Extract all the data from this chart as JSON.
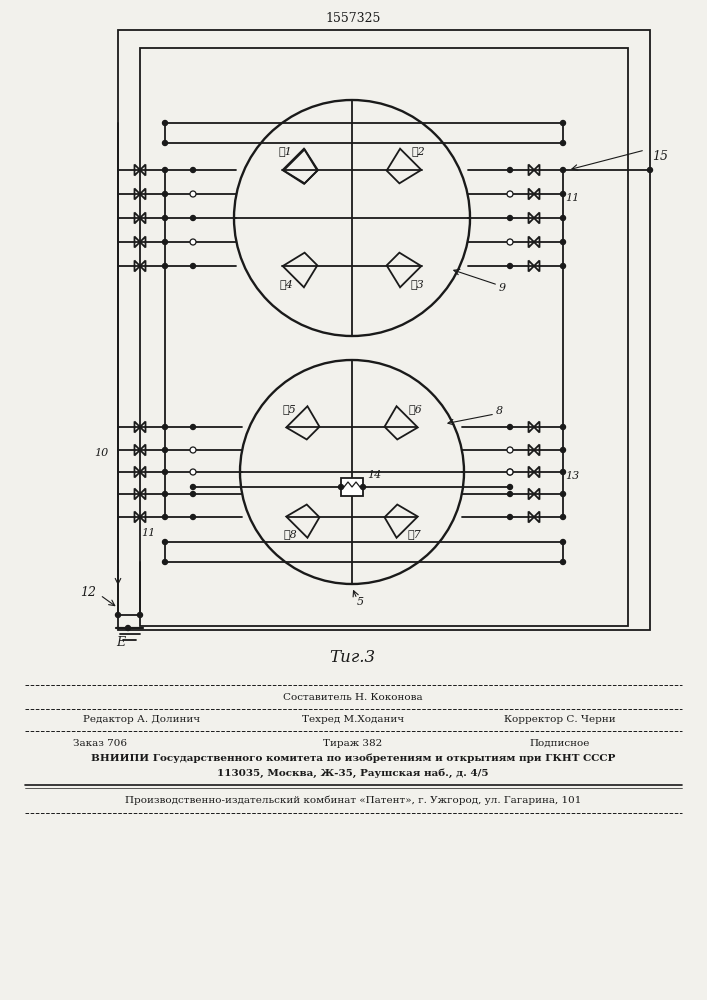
{
  "patent_number": "1557325",
  "fig_label": "Τиг.3",
  "bg_color": "#f2f1ec",
  "line_color": "#1a1a1a",
  "labels": {
    "ts1": "ѡ1",
    "ts2": "ѡ2",
    "ts3": "ѡ3",
    "ts4": "ѡ4",
    "ts5": "ѡ5",
    "ts6": "ѡ6",
    "ts7": "ѡ7",
    "ts8": "ѡ8"
  },
  "footer": {
    "sost": "Составитель Н. Коконова",
    "red": "Редактор А. Долинич",
    "teh": "Техред М.Ходанич",
    "korr": "Корректор С. Черни",
    "zakaz": "Заказ 706",
    "tirazh": "Тираж 382",
    "podp": "Подписное",
    "vniipи": "ВНИИПИ Государственного комитета по изобретениям и открытиям при ГКНТ СССР",
    "addr": "113035, Москва, Ж-35, Раушская наб., д. 4/5",
    "prod": "Производственно-издательский комбинат «Патент», г. Ужгород, ул. Гагарина, 101"
  }
}
